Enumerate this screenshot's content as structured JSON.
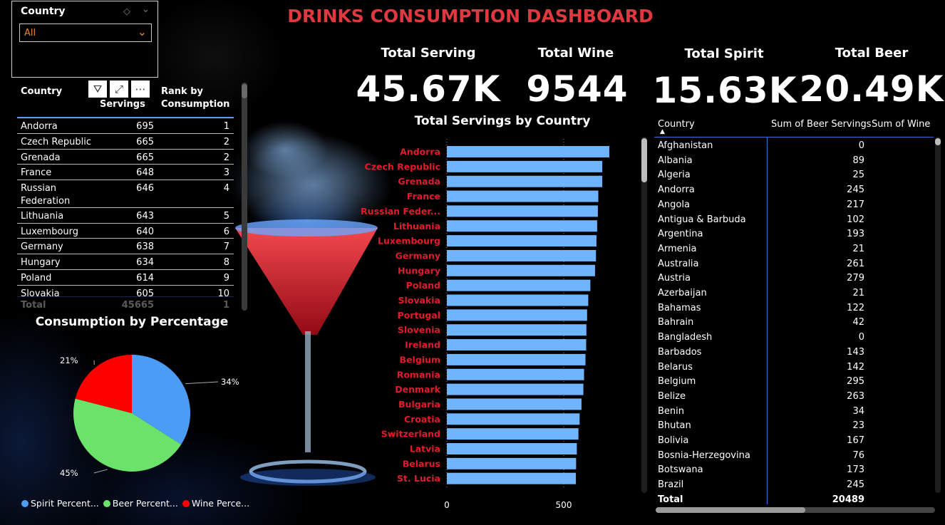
{
  "title": "DRINKS CONSUMPTION DASHBOARD",
  "slicer": {
    "label": "Country",
    "value": "All"
  },
  "kpis": [
    {
      "label": "Total Serving",
      "value": "45.67K"
    },
    {
      "label": "Total Wine",
      "value": "9544"
    },
    {
      "label": "Total Spirit",
      "value": "15.63K"
    },
    {
      "label": "Total Beer",
      "value": "20.49K"
    }
  ],
  "rank_table": {
    "headers": {
      "country": "Country",
      "servings": "Servings",
      "rank": "Rank by Consumption"
    },
    "rows": [
      {
        "country": "Andorra",
        "servings": "695",
        "rank": "1"
      },
      {
        "country": "Czech Republic",
        "servings": "665",
        "rank": "2"
      },
      {
        "country": "Grenada",
        "servings": "665",
        "rank": "2"
      },
      {
        "country": "France",
        "servings": "648",
        "rank": "3"
      },
      {
        "country": "Russian Federation",
        "servings": "646",
        "rank": "4"
      },
      {
        "country": "Lithuania",
        "servings": "643",
        "rank": "5"
      },
      {
        "country": "Luxembourg",
        "servings": "640",
        "rank": "6"
      },
      {
        "country": "Germany",
        "servings": "638",
        "rank": "7"
      },
      {
        "country": "Hungary",
        "servings": "634",
        "rank": "8"
      },
      {
        "country": "Poland",
        "servings": "614",
        "rank": "9"
      },
      {
        "country": "Slovakia",
        "servings": "605",
        "rank": "10"
      }
    ],
    "total": {
      "label": "Total",
      "servings": "45665",
      "rank": "1"
    }
  },
  "bar_chart": {
    "title": "Total Servings by Country",
    "x_ticks": [
      "0",
      "500"
    ]
  },
  "chart_data": [
    {
      "type": "bar",
      "title": "Total Servings by Country",
      "categories": [
        "Andorra",
        "Czech Republic",
        "Grenada",
        "France",
        "Russian Feder...",
        "Lithuania",
        "Luxembourg",
        "Germany",
        "Hungary",
        "Poland",
        "Slovakia",
        "Portugal",
        "Slovenia",
        "Ireland",
        "Belgium",
        "Romania",
        "Denmark",
        "Bulgaria",
        "Croatia",
        "Switzerland",
        "Latvia",
        "Belarus",
        "St. Lucia"
      ],
      "values": [
        695,
        665,
        665,
        648,
        646,
        643,
        640,
        638,
        634,
        614,
        605,
        600,
        597,
        596,
        593,
        587,
        584,
        576,
        568,
        563,
        556,
        553,
        552
      ],
      "xlim": [
        0,
        700
      ],
      "orientation": "horizontal",
      "bar_color": "#6fb4ff",
      "label_color": "#e21b2b"
    },
    {
      "type": "pie",
      "title": "Consumption by Percentage",
      "labels": [
        "Spirit Percent...",
        "Beer Percent...",
        "Wine Perce..."
      ],
      "values": [
        34,
        45,
        21
      ],
      "colors": [
        "#4b9cf5",
        "#6be36b",
        "#ff0000"
      ],
      "slice_labels": [
        "34%",
        "45%",
        "21%"
      ]
    }
  ],
  "country_table": {
    "headers": {
      "country": "Country",
      "beer": "Sum of Beer Servings",
      "wine": "Sum of Wine S"
    },
    "rows": [
      {
        "country": "Afghanistan",
        "beer": "0"
      },
      {
        "country": "Albania",
        "beer": "89"
      },
      {
        "country": "Algeria",
        "beer": "25"
      },
      {
        "country": "Andorra",
        "beer": "245"
      },
      {
        "country": "Angola",
        "beer": "217"
      },
      {
        "country": "Antigua & Barbuda",
        "beer": "102"
      },
      {
        "country": "Argentina",
        "beer": "193"
      },
      {
        "country": "Armenia",
        "beer": "21"
      },
      {
        "country": "Australia",
        "beer": "261"
      },
      {
        "country": "Austria",
        "beer": "279"
      },
      {
        "country": "Azerbaijan",
        "beer": "21"
      },
      {
        "country": "Bahamas",
        "beer": "122"
      },
      {
        "country": "Bahrain",
        "beer": "42"
      },
      {
        "country": "Bangladesh",
        "beer": "0"
      },
      {
        "country": "Barbados",
        "beer": "143"
      },
      {
        "country": "Belarus",
        "beer": "142"
      },
      {
        "country": "Belgium",
        "beer": "295"
      },
      {
        "country": "Belize",
        "beer": "263"
      },
      {
        "country": "Benin",
        "beer": "34"
      },
      {
        "country": "Bhutan",
        "beer": "23"
      },
      {
        "country": "Bolivia",
        "beer": "167"
      },
      {
        "country": "Bosnia-Herzegovina",
        "beer": "76"
      },
      {
        "country": "Botswana",
        "beer": "173"
      },
      {
        "country": "Brazil",
        "beer": "245"
      }
    ],
    "total": {
      "label": "Total",
      "beer": "20489"
    }
  },
  "icons": {
    "filter": "filter-icon",
    "focus": "focus-mode-icon",
    "more": "more-options-icon",
    "eraser": "eraser-icon",
    "chevron": "chevron-down-icon"
  },
  "colors": {
    "title": "#e0383f",
    "bar": "#6fb4ff",
    "bar_label": "#e21b2b",
    "slicer_value": "#e08a36",
    "table_header_line": "#3b6fd6"
  }
}
